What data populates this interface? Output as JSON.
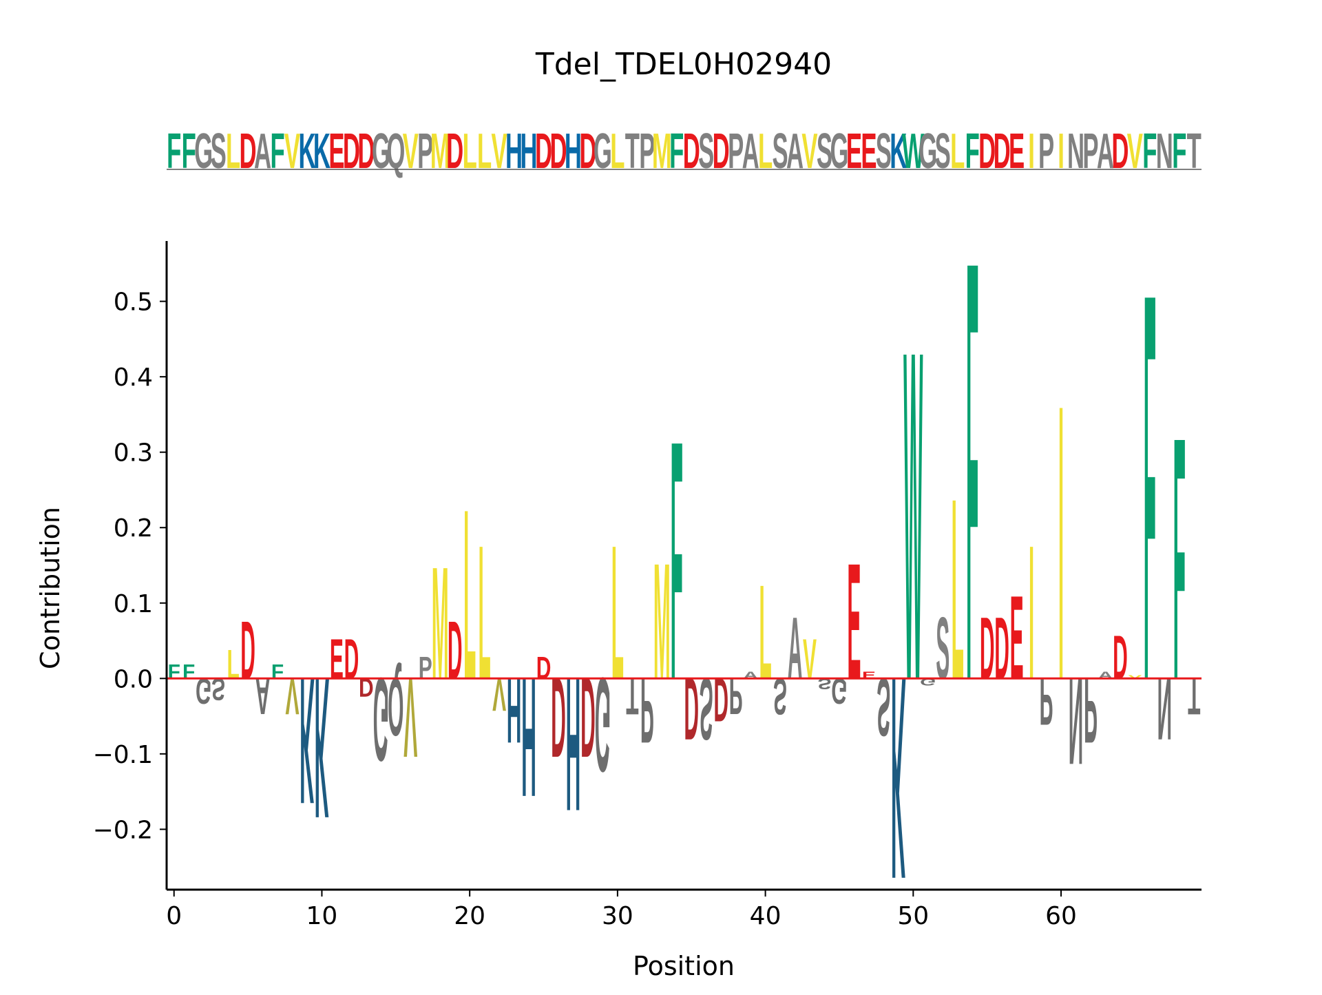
{
  "chart_data": {
    "type": "sequence-logo",
    "title": "Tdel_TDEL0H02940",
    "sequence": "FFGSLDAFVKKEDDGQVPMDLLVHHDDHDGLTPMFDSDPALSAVSGEESKWGSLFDDEIPINPADVFNFT",
    "xlabel": "Position",
    "ylabel": "Contribution",
    "xlim": [
      -0.5,
      69.5
    ],
    "ylim": [
      -0.28,
      0.58
    ],
    "xticks": [
      0,
      10,
      20,
      30,
      40,
      50,
      60
    ],
    "yticks": [
      -0.2,
      -0.1,
      0.0,
      0.1,
      0.2,
      0.3,
      0.4,
      0.5
    ],
    "ytick_labels": [
      "−0.2",
      "−0.1",
      "0.0",
      "0.1",
      "0.2",
      "0.3",
      "0.4",
      "0.5"
    ],
    "contributions": [
      {
        "pos": 0,
        "letter": "F",
        "value": 0.02
      },
      {
        "pos": 1,
        "letter": "F",
        "value": 0.02
      },
      {
        "pos": 2,
        "letter": "G",
        "value": -0.035
      },
      {
        "pos": 3,
        "letter": "S",
        "value": -0.03
      },
      {
        "pos": 4,
        "letter": "L",
        "value": 0.04
      },
      {
        "pos": 5,
        "letter": "D",
        "value": 0.08
      },
      {
        "pos": 6,
        "letter": "A",
        "value": -0.05
      },
      {
        "pos": 7,
        "letter": "F",
        "value": 0.02
      },
      {
        "pos": 8,
        "letter": "V",
        "value": -0.05
      },
      {
        "pos": 9,
        "letter": "K",
        "value": -0.175
      },
      {
        "pos": 10,
        "letter": "K",
        "value": -0.195
      },
      {
        "pos": 11,
        "letter": "E",
        "value": 0.055
      },
      {
        "pos": 12,
        "letter": "D",
        "value": 0.055
      },
      {
        "pos": 13,
        "letter": "D",
        "value": -0.025
      },
      {
        "pos": 14,
        "letter": "G",
        "value": -0.115
      },
      {
        "pos": 15,
        "letter": "Q",
        "value": -0.08
      },
      {
        "pos": 16,
        "letter": "V",
        "value": -0.11
      },
      {
        "pos": 17,
        "letter": "P",
        "value": 0.03
      },
      {
        "pos": 18,
        "letter": "M",
        "value": 0.155
      },
      {
        "pos": 19,
        "letter": "D",
        "value": 0.08
      },
      {
        "pos": 20,
        "letter": "L",
        "value": 0.235
      },
      {
        "pos": 21,
        "letter": "L",
        "value": 0.185
      },
      {
        "pos": 22,
        "letter": "V",
        "value": -0.045
      },
      {
        "pos": 23,
        "letter": "H",
        "value": -0.09
      },
      {
        "pos": 24,
        "letter": "H",
        "value": -0.165
      },
      {
        "pos": 25,
        "letter": "D",
        "value": 0.03
      },
      {
        "pos": 26,
        "letter": "D",
        "value": -0.11
      },
      {
        "pos": 27,
        "letter": "H",
        "value": -0.185
      },
      {
        "pos": 28,
        "letter": "D",
        "value": -0.11
      },
      {
        "pos": 29,
        "letter": "G",
        "value": -0.13
      },
      {
        "pos": 30,
        "letter": "L",
        "value": 0.185
      },
      {
        "pos": 31,
        "letter": "T",
        "value": -0.05
      },
      {
        "pos": 32,
        "letter": "P",
        "value": -0.09
      },
      {
        "pos": 33,
        "letter": "M",
        "value": 0.16
      },
      {
        "pos": 34,
        "letter": "F",
        "value": 0.33
      },
      {
        "pos": 35,
        "letter": "D",
        "value": -0.085
      },
      {
        "pos": 36,
        "letter": "S",
        "value": -0.085
      },
      {
        "pos": 37,
        "letter": "D",
        "value": -0.06
      },
      {
        "pos": 38,
        "letter": "P",
        "value": -0.05
      },
      {
        "pos": 39,
        "letter": "A",
        "value": 0.01
      },
      {
        "pos": 40,
        "letter": "L",
        "value": 0.13
      },
      {
        "pos": 41,
        "letter": "S",
        "value": -0.05
      },
      {
        "pos": 42,
        "letter": "A",
        "value": 0.085
      },
      {
        "pos": 43,
        "letter": "V",
        "value": 0.055
      },
      {
        "pos": 44,
        "letter": "S",
        "value": -0.015
      },
      {
        "pos": 45,
        "letter": "G",
        "value": -0.035
      },
      {
        "pos": 46,
        "letter": "E",
        "value": 0.16
      },
      {
        "pos": 47,
        "letter": "E",
        "value": 0.01
      },
      {
        "pos": 48,
        "letter": "S",
        "value": -0.08
      },
      {
        "pos": 49,
        "letter": "K",
        "value": -0.28
      },
      {
        "pos": 50,
        "letter": "W",
        "value": 0.455
      },
      {
        "pos": 51,
        "letter": "G",
        "value": -0.01
      },
      {
        "pos": 52,
        "letter": "S",
        "value": 0.085
      },
      {
        "pos": 53,
        "letter": "L",
        "value": 0.25
      },
      {
        "pos": 54,
        "letter": "F",
        "value": 0.58
      },
      {
        "pos": 55,
        "letter": "D",
        "value": 0.085
      },
      {
        "pos": 56,
        "letter": "D",
        "value": 0.085
      },
      {
        "pos": 57,
        "letter": "E",
        "value": 0.115
      },
      {
        "pos": 58,
        "letter": "I",
        "value": 0.185
      },
      {
        "pos": 59,
        "letter": "P",
        "value": -0.065
      },
      {
        "pos": 60,
        "letter": "I",
        "value": 0.38
      },
      {
        "pos": 61,
        "letter": "N",
        "value": -0.12
      },
      {
        "pos": 62,
        "letter": "P",
        "value": -0.09
      },
      {
        "pos": 63,
        "letter": "A",
        "value": 0.01
      },
      {
        "pos": 64,
        "letter": "D",
        "value": 0.06
      },
      {
        "pos": 65,
        "letter": "V",
        "value": 0.005
      },
      {
        "pos": 66,
        "letter": "F",
        "value": 0.535
      },
      {
        "pos": 67,
        "letter": "N",
        "value": -0.085
      },
      {
        "pos": 68,
        "letter": "F",
        "value": 0.335
      },
      {
        "pos": 69,
        "letter": "T",
        "value": -0.05
      }
    ],
    "colors": {
      "F": "#08a070",
      "W": "#08a070",
      "D": "#e8191c",
      "E": "#e8191c",
      "L": "#f0e033",
      "I": "#f0e033",
      "V": "#f0e033",
      "M": "#f0e033",
      "K": "#0a6aa8",
      "H": "#0a6aa8",
      "default": "#808080",
      "neg_D": "#b0282b",
      "neg_E": "#b0282b",
      "neg_K": "#1d5a80",
      "neg_H": "#1d5a80",
      "neg_V": "#b0a83a",
      "neg_L": "#b0a83a",
      "neg_default": "#6e6e6e",
      "zero_line": "#e8191c"
    }
  }
}
